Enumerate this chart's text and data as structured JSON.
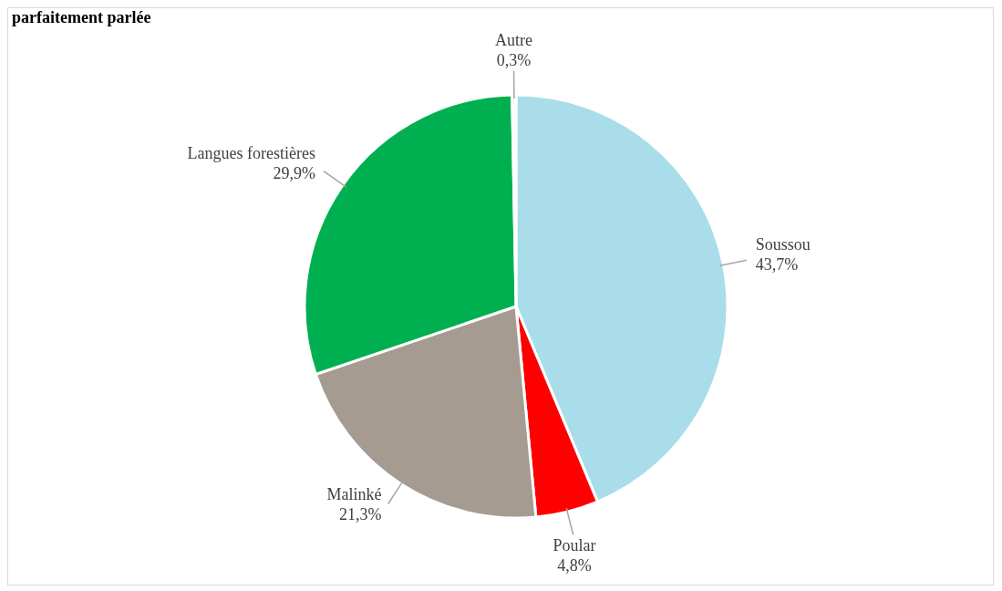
{
  "chart_data": {
    "type": "pie",
    "title": "parfaitement parlée",
    "categories": [
      "Soussou",
      "Poular",
      "Malinké",
      "Langues forestières",
      "Autre"
    ],
    "values": [
      43.7,
      4.8,
      21.3,
      29.9,
      0.3
    ],
    "value_labels": [
      "43,7%",
      "4,8%",
      "21,3%",
      "29,9%",
      "0,3%"
    ],
    "colors": [
      "#a9dde9",
      "#ff0000",
      "#a59b91",
      "#00b050",
      "#f2f2f2"
    ],
    "legend": false
  }
}
